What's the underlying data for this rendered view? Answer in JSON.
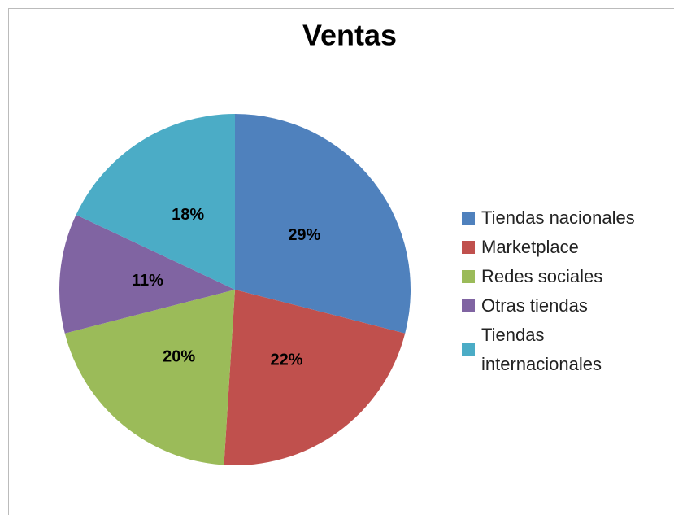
{
  "chart_data": {
    "type": "pie",
    "title": "Ventas",
    "categories": [
      "Tiendas nacionales",
      "Marketplace",
      "Redes sociales",
      "Otras tiendas",
      "Tiendas internacionales"
    ],
    "values": [
      29,
      22,
      20,
      11,
      18
    ],
    "value_labels": [
      "29%",
      "22%",
      "20%",
      "11%",
      "18%"
    ],
    "colors": [
      "#4f81bd",
      "#c0504d",
      "#9bbb59",
      "#8064a2",
      "#4bacc6"
    ],
    "legend": "right"
  }
}
